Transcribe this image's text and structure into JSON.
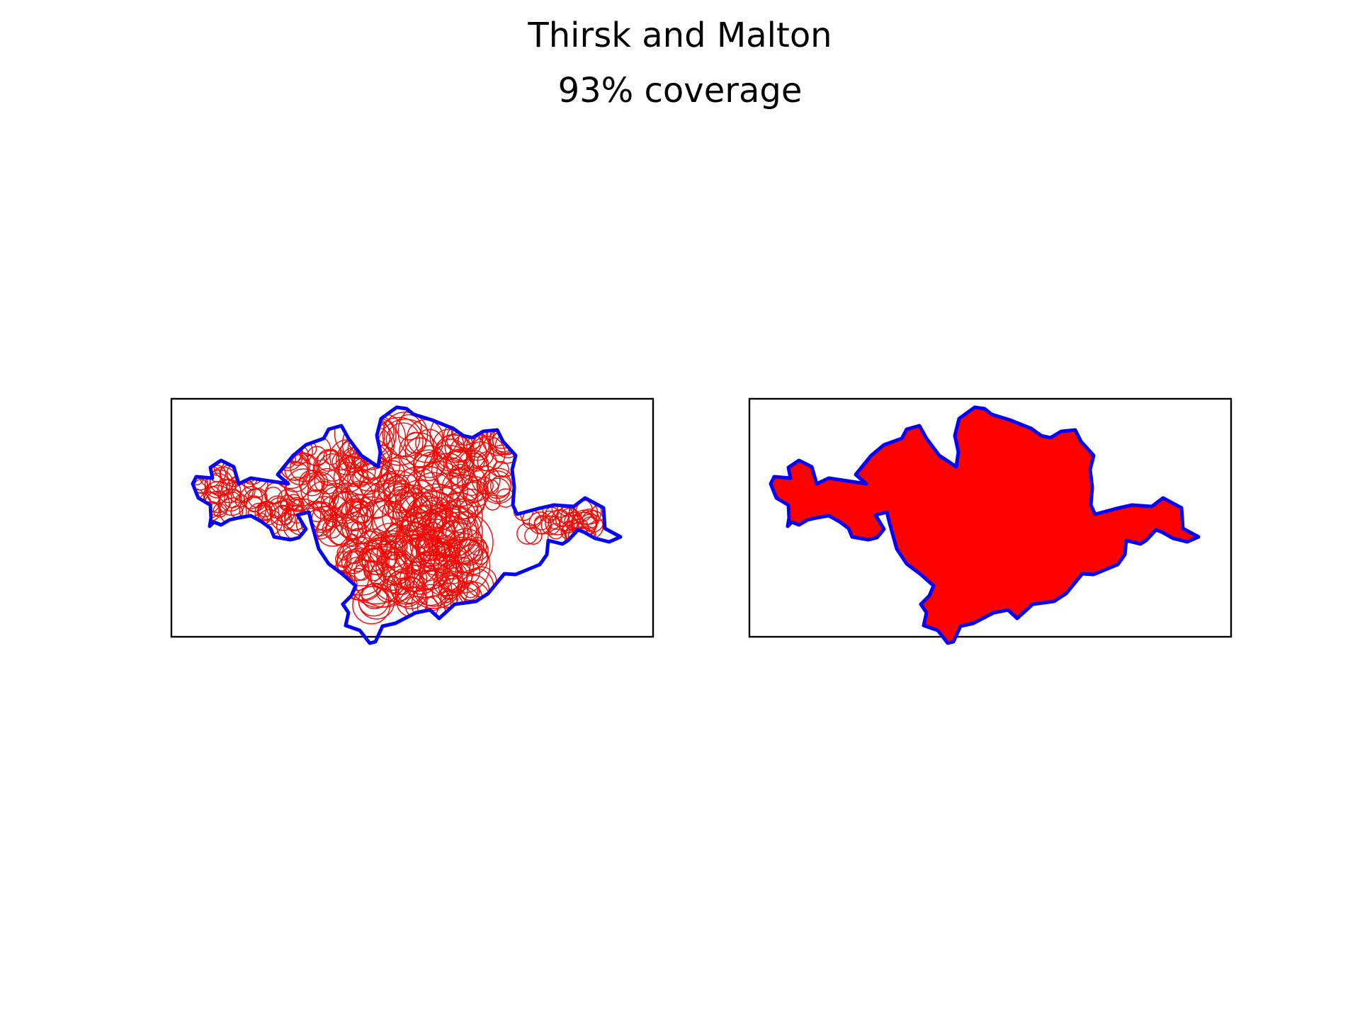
{
  "figure": {
    "title": "Thirsk and Malton",
    "subtitle": "93% coverage"
  },
  "colors": {
    "boundary": "#0000ff",
    "fill": "#ff0000",
    "circle_stroke": "#ff0000",
    "frame": "#000000",
    "background": "#ffffff"
  },
  "panels": [
    {
      "id": "circles-panel",
      "style": "circle-packing"
    },
    {
      "id": "filled-panel",
      "style": "solid-fill"
    }
  ]
}
